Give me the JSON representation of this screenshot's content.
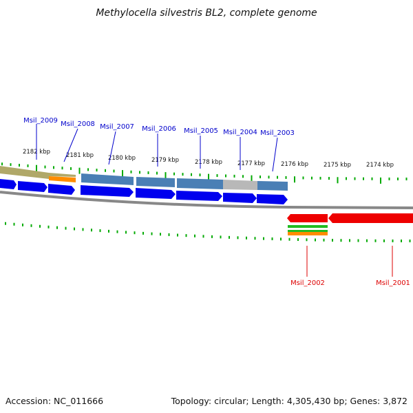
{
  "title": "Methylocella silvestris BL2, complete genome",
  "colors": {
    "forward_label": "#0000cc",
    "reverse_label": "#dd0000",
    "tick": "#00aa00",
    "cds_forward": "#0000ee",
    "cds_reverse": "#ee0000",
    "cog_steel": "#4a7fb5",
    "cog_olive": "#b0a868",
    "cog_orange": "#ff8c00",
    "cog_grey": "#b8b8b8",
    "cog_green": "#22bb22",
    "backbone": "#888888"
  },
  "ruler_labels": [
    "2182 kbp",
    "2181 kbp",
    "2180 kbp",
    "2179 kbp",
    "2178 kbp",
    "2177 kbp",
    "2176 kbp",
    "2175 kbp",
    "2174 kbp"
  ],
  "forward_genes": [
    "Msil_2009",
    "Msil_2008",
    "Msil_2007",
    "Msil_2006",
    "Msil_2005",
    "Msil_2004",
    "Msil_2003"
  ],
  "reverse_genes": [
    "Msil_2002",
    "Msil_2001"
  ],
  "footer": {
    "accession": "Accession: NC_011666",
    "summary": "Topology: circular; Length: 4,305,430 bp; Genes: 3,872"
  }
}
